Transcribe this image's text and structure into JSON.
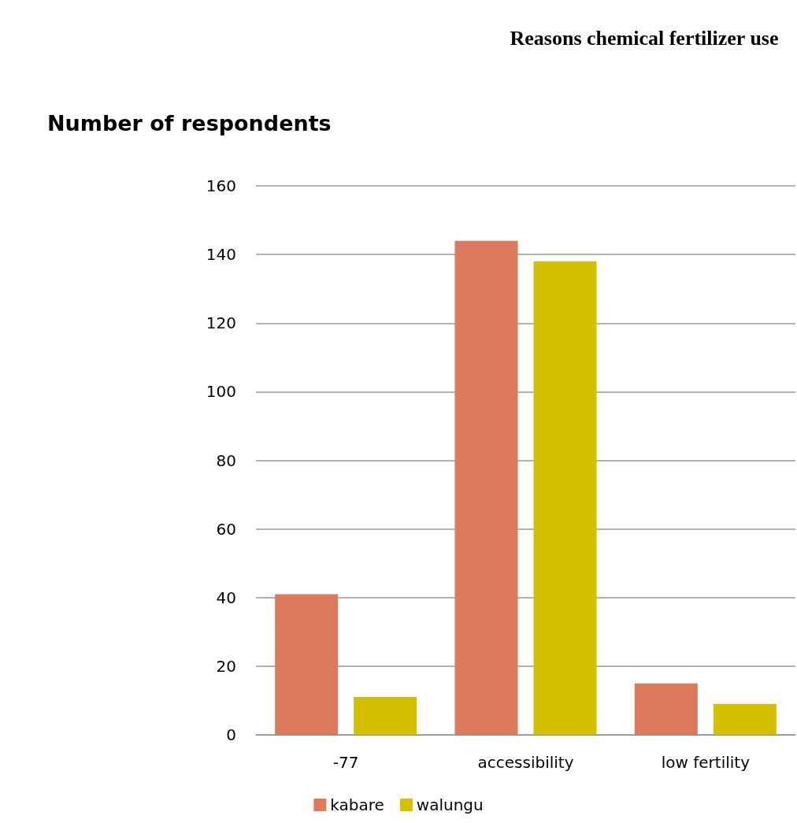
{
  "chart_data": {
    "type": "bar",
    "title": "Reasons chemical fertilizer use",
    "ylabel": "Number of respondents",
    "categories": [
      "-77",
      "accessibility",
      "low fertility"
    ],
    "series": [
      {
        "name": "kabare",
        "color": "#dd7a5d",
        "values": [
          41,
          144,
          15
        ]
      },
      {
        "name": "walungu",
        "color": "#d4c000",
        "values": [
          11,
          138,
          9
        ]
      }
    ],
    "ylim": [
      0,
      160
    ],
    "yticks": [
      0,
      20,
      40,
      60,
      80,
      100,
      120,
      140,
      160
    ],
    "grid": "y",
    "legend": "bottom"
  }
}
